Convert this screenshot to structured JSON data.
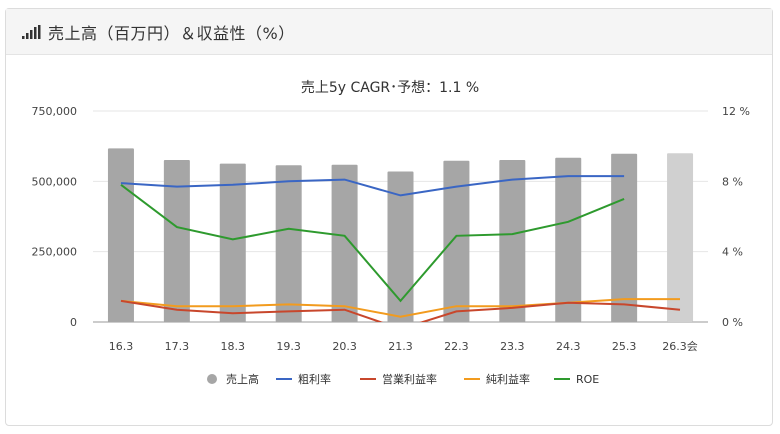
{
  "header": {
    "title": "売上高（百万円）＆収益性（%）",
    "icon": "bar-chart-signal-icon"
  },
  "colors": {
    "bar": "#a6a6a6",
    "bar_forecast": "#d0d0d0",
    "gross_margin": "#3a66c4",
    "operating_margin": "#c8472c",
    "net_margin": "#f29b1e",
    "roe": "#2e9a2e"
  },
  "chart_data": {
    "type": "bar",
    "title": "売上5y CAGR･予想：1.1 %",
    "categories": [
      "16.3",
      "17.3",
      "18.3",
      "19.3",
      "20.3",
      "21.3",
      "22.3",
      "23.3",
      "24.3",
      "25.3",
      "26.3会"
    ],
    "left_axis": {
      "ylim": [
        0,
        750000
      ],
      "ticks": [
        0,
        250000,
        500000,
        750000
      ],
      "tick_labels": [
        "0",
        "250,000",
        "500,000",
        "750,000"
      ]
    },
    "right_axis": {
      "ylim": [
        0,
        12
      ],
      "ticks": [
        0,
        4,
        8,
        12
      ],
      "tick_labels": [
        "0 %",
        "4 %",
        "8 %",
        "12 %"
      ]
    },
    "grid": true,
    "legend_position": "bottom",
    "series": [
      {
        "name": "売上高",
        "kind": "bar",
        "axis": "left",
        "legend_marker": "circle",
        "values": [
          617000,
          576000,
          563000,
          557000,
          559000,
          535000,
          573000,
          576000,
          584000,
          598000,
          600000
        ],
        "forecast_index": 10
      },
      {
        "name": "粗利率",
        "kind": "line",
        "axis": "right",
        "values": [
          7.9,
          7.7,
          7.8,
          8.0,
          8.1,
          7.2,
          7.7,
          8.1,
          8.3,
          8.3,
          null
        ]
      },
      {
        "name": "営業利益率",
        "kind": "line",
        "axis": "right",
        "values": [
          1.2,
          0.7,
          0.5,
          0.6,
          0.7,
          -0.4,
          0.6,
          0.8,
          1.1,
          1.0,
          0.7
        ]
      },
      {
        "name": "純利益率",
        "kind": "line",
        "axis": "right",
        "values": [
          1.2,
          0.9,
          0.9,
          1.0,
          0.9,
          0.3,
          0.9,
          0.9,
          1.1,
          1.3,
          1.3
        ]
      },
      {
        "name": "ROE",
        "kind": "line",
        "axis": "right",
        "values": [
          7.8,
          5.4,
          4.7,
          5.3,
          4.9,
          1.2,
          4.9,
          5.0,
          5.7,
          7.0,
          null
        ]
      }
    ]
  }
}
